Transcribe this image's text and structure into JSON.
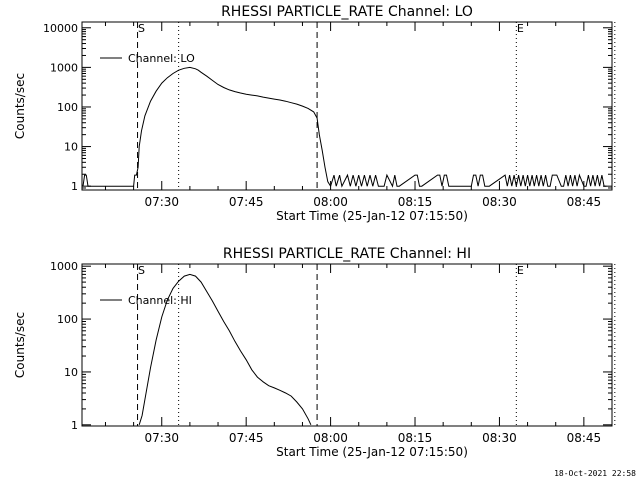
{
  "footer": {
    "timestamp": "18-Oct-2021 22:58"
  },
  "chart_data": [
    {
      "id": "lo",
      "type": "line",
      "title": "RHESSI PARTICLE_RATE Channel: LO",
      "xlabel": "Start Time (25-Jan-12 07:15:50)",
      "ylabel": "Counts/sec",
      "yscale": "log",
      "ylim": [
        0.8,
        14000
      ],
      "xlim_min": [
        15.83,
        110
      ],
      "ytick_values": [
        1,
        10,
        100,
        1000,
        10000
      ],
      "ytick_labels": [
        "1",
        "10",
        "100",
        "1000",
        "10000"
      ],
      "xtick_values": [
        30,
        45,
        60,
        75,
        90,
        105
      ],
      "xtick_labels": [
        "07:30",
        "07:45",
        "08:00",
        "08:15",
        "08:30",
        "08:45"
      ],
      "legend": {
        "label": "Channel: LO",
        "position": "top-left"
      },
      "markers": [
        {
          "label": "S",
          "x_min": 25.7,
          "style": "dashed"
        },
        {
          "label": "",
          "x_min": 57.6,
          "style": "dashed"
        },
        {
          "label": "",
          "x_min": 33.0,
          "style": "dotted"
        },
        {
          "label": "E",
          "x_min": 93.0,
          "style": "dotted"
        },
        {
          "label": "",
          "x_min": 110.5,
          "style": "dotted"
        }
      ],
      "series": [
        {
          "name": "Channel: LO",
          "x_min": [
            16.0,
            16.3,
            16.6,
            16.9,
            17.5,
            25.0,
            25.2,
            25.5,
            25.8,
            26.0,
            26.4,
            27.0,
            28.0,
            29.0,
            30.0,
            31.0,
            32.0,
            33.0,
            34.0,
            35.0,
            36.0,
            36.5,
            37.0,
            38.0,
            39.0,
            40.0,
            41.0,
            42.0,
            43.0,
            44.0,
            45.0,
            46.0,
            47.0,
            48.0,
            49.0,
            50.0,
            51.0,
            52.0,
            53.0,
            54.0,
            55.0,
            56.0,
            57.0,
            57.6,
            58.0,
            58.5,
            59.0,
            59.5,
            60.0,
            60.6,
            61.0,
            61.6,
            62.0,
            63.0,
            63.5,
            64.0,
            64.5,
            65.0,
            65.5,
            66.0,
            66.5,
            67.0,
            67.5,
            68.0,
            68.5,
            69.0,
            69.5,
            70.0,
            71.0,
            71.4,
            71.8,
            72.2,
            75.0,
            75.4,
            75.8,
            76.2,
            79.0,
            79.4,
            79.8,
            80.2,
            80.6,
            81.0,
            85.0,
            85.4,
            85.8,
            86.2,
            86.6,
            87.0,
            87.4,
            87.8,
            88.2,
            91.0,
            91.4,
            91.8,
            92.2,
            92.6,
            93.0,
            93.4,
            93.8,
            94.2,
            94.6,
            95.0,
            95.4,
            95.8,
            96.2,
            96.6,
            97.0,
            97.4,
            97.8,
            98.2,
            98.6,
            99.0,
            99.4,
            99.8,
            100.2,
            101.0,
            101.4,
            101.8,
            102.2,
            102.6,
            103.0,
            103.4,
            103.8,
            104.2,
            105.0,
            105.4,
            105.8,
            106.2,
            106.6,
            107.0,
            107.4,
            107.8,
            108.2,
            108.6,
            109.0,
            109.4,
            110.0
          ],
          "values": [
            1,
            1.9,
            1.9,
            1,
            1,
            1,
            1.9,
            1.9,
            3,
            10,
            25,
            60,
            140,
            250,
            400,
            550,
            700,
            850,
            950,
            1000,
            920,
            850,
            750,
            600,
            470,
            370,
            310,
            270,
            245,
            225,
            210,
            200,
            190,
            178,
            168,
            158,
            150,
            140,
            128,
            118,
            105,
            92,
            75,
            52,
            20,
            8,
            3,
            1.3,
            1,
            1.9,
            1,
            1.9,
            1,
            1.9,
            1,
            1.9,
            1,
            1.9,
            1,
            1.9,
            1,
            1.9,
            1,
            1.9,
            1,
            1,
            1,
            1.9,
            1,
            1.9,
            1,
            1,
            1.9,
            1.9,
            1,
            1,
            1.9,
            1.9,
            1,
            1.9,
            1.9,
            1,
            1,
            1.9,
            1.9,
            1,
            1.9,
            1.9,
            1,
            1,
            1,
            1.9,
            1,
            1.9,
            1,
            1.9,
            1,
            1.9,
            1,
            1.9,
            1,
            1.9,
            1,
            1.9,
            1,
            1.9,
            1,
            1.9,
            1,
            1.9,
            1,
            1,
            1.9,
            1.9,
            1.9,
            1,
            1,
            1.9,
            1,
            1.9,
            1,
            1.9,
            1,
            1.9,
            1,
            1,
            1.9,
            1,
            1.9,
            1,
            1.9,
            1,
            1.9,
            1,
            1
          ]
        }
      ]
    },
    {
      "id": "hi",
      "type": "line",
      "title": "RHESSI PARTICLE_RATE Channel: HI",
      "xlabel": "Start Time (25-Jan-12 07:15:50)",
      "ylabel": "Counts/sec",
      "yscale": "log",
      "ylim": [
        0.95,
        1100
      ],
      "xlim_min": [
        15.83,
        110
      ],
      "ytick_values": [
        1,
        10,
        100,
        1000
      ],
      "ytick_labels": [
        "1",
        "10",
        "100",
        "1000"
      ],
      "xtick_values": [
        30,
        45,
        60,
        75,
        90,
        105
      ],
      "xtick_labels": [
        "07:30",
        "07:45",
        "08:00",
        "08:15",
        "08:30",
        "08:45"
      ],
      "legend": {
        "label": "Channel: HI",
        "position": "top-left"
      },
      "markers": [
        {
          "label": "S",
          "x_min": 25.7,
          "style": "dashed"
        },
        {
          "label": "",
          "x_min": 57.6,
          "style": "dashed"
        },
        {
          "label": "",
          "x_min": 33.0,
          "style": "dotted"
        },
        {
          "label": "E",
          "x_min": 93.0,
          "style": "dotted"
        },
        {
          "label": "",
          "x_min": 110.5,
          "style": "dotted"
        }
      ],
      "series": [
        {
          "name": "Channel: HI",
          "x_min": [
            26.0,
            26.5,
            27.0,
            28.0,
            29.0,
            30.0,
            31.0,
            32.0,
            33.0,
            34.0,
            35.0,
            36.0,
            37.0,
            38.0,
            39.0,
            40.0,
            41.0,
            42.0,
            43.0,
            44.0,
            45.0,
            46.0,
            47.0,
            48.0,
            49.0,
            50.0,
            51.0,
            52.0,
            53.0,
            54.0,
            55.0,
            56.0,
            56.5
          ],
          "values": [
            1,
            1.5,
            3,
            12,
            40,
            110,
            230,
            380,
            520,
            650,
            700,
            650,
            500,
            330,
            220,
            140,
            90,
            60,
            38,
            25,
            17,
            11,
            8,
            6.5,
            5.5,
            5,
            4.5,
            4,
            3.5,
            2.7,
            2,
            1.3,
            1
          ]
        }
      ]
    }
  ]
}
